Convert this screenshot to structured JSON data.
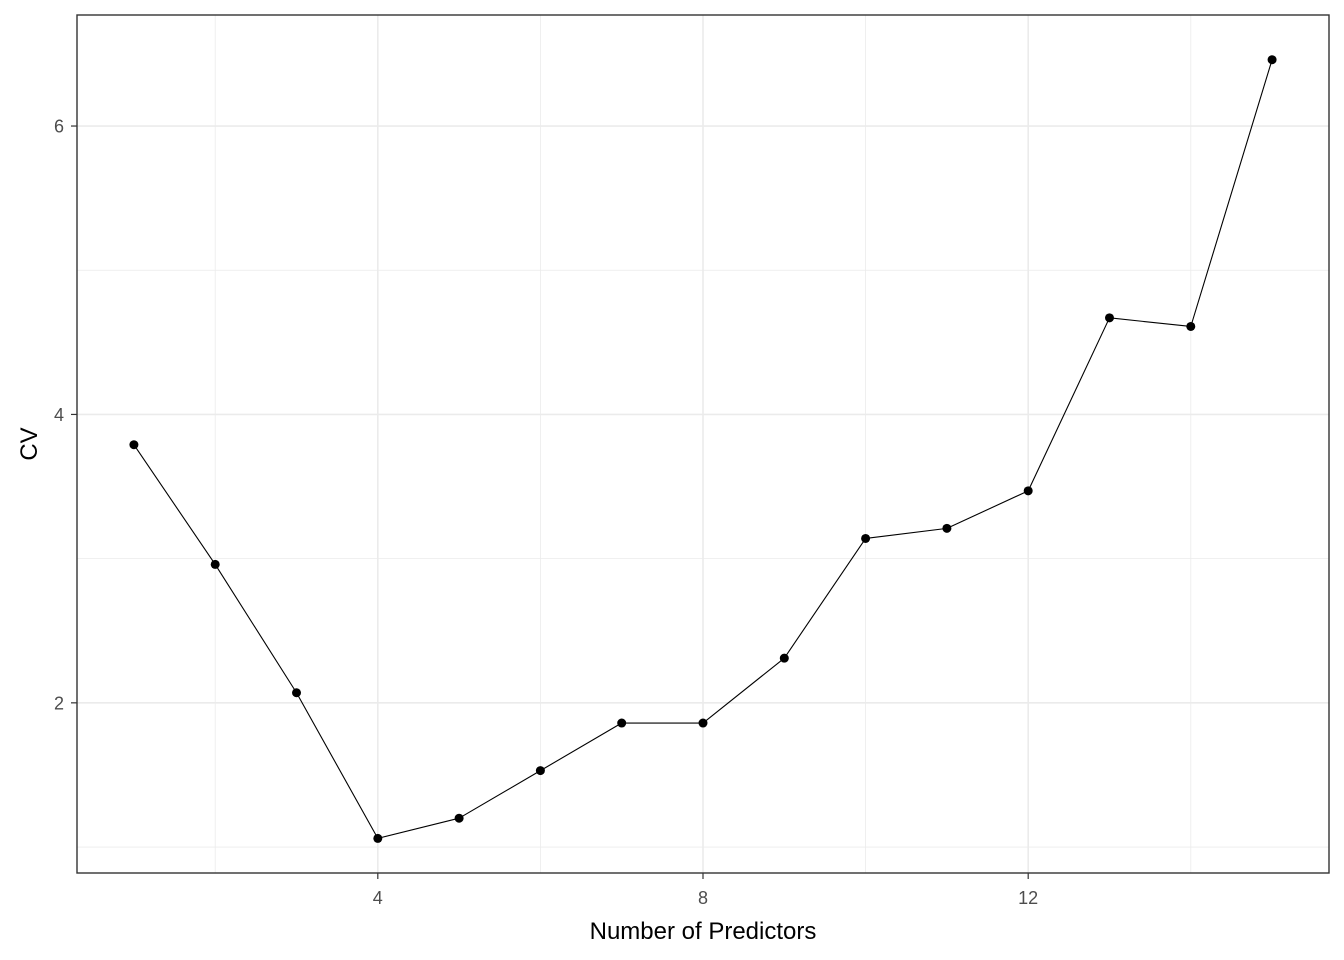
{
  "chart_data": {
    "type": "line",
    "title": "",
    "xlabel": "Number of Predictors",
    "ylabel": "CV",
    "x": [
      1,
      2,
      3,
      4,
      5,
      6,
      7,
      8,
      9,
      10,
      11,
      12,
      13,
      14,
      15
    ],
    "series": [
      {
        "values": [
          3.79,
          2.96,
          2.07,
          1.06,
          1.2,
          1.53,
          1.86,
          1.86,
          2.31,
          3.14,
          3.21,
          3.47,
          4.67,
          4.61,
          6.46
        ]
      }
    ],
    "xlim": [
      0.3,
      15.7
    ],
    "ylim": [
      0.82,
      6.77
    ],
    "x_ticks": [
      4,
      8,
      12
    ],
    "x_tick_labels": [
      "4",
      "8",
      "12"
    ],
    "y_ticks": [
      2,
      4,
      6
    ],
    "y_tick_labels": [
      "2",
      "4",
      "6"
    ],
    "x_minor_grid": [
      2,
      6,
      10,
      14
    ],
    "y_minor_grid": [
      1,
      3,
      5
    ],
    "grid": true,
    "legend": "none",
    "colors": {
      "line": "#000000",
      "point": "#000000",
      "grid": "#ebebeb",
      "panel_border": "#333333",
      "tick_text": "#4d4d4d"
    }
  }
}
